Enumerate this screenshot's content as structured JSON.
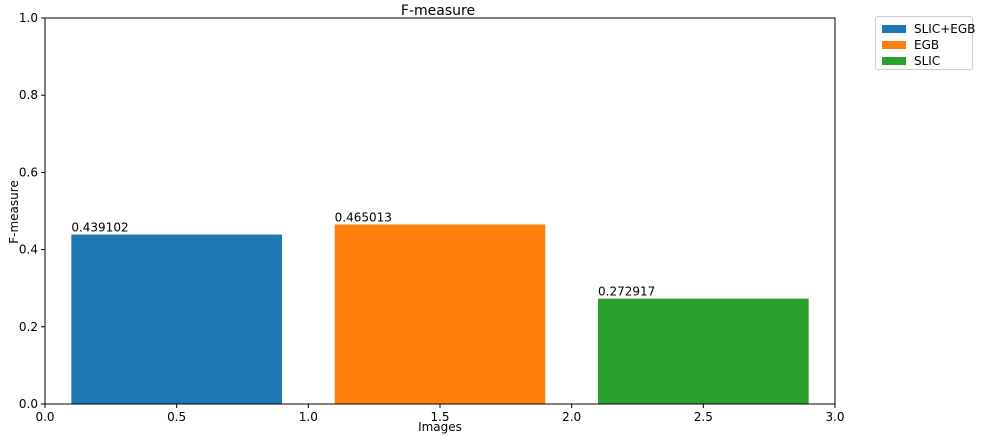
{
  "chart_data": {
    "type": "bar",
    "title": "F-measure",
    "xlabel": "Images",
    "ylabel": "F-measure",
    "xlim": [
      0.0,
      3.0
    ],
    "ylim": [
      0.0,
      1.0
    ],
    "xticks": [
      "0.0",
      "0.5",
      "1.0",
      "1.5",
      "2.0",
      "2.5",
      "3.0"
    ],
    "yticks": [
      "0.0",
      "0.2",
      "0.4",
      "0.6",
      "0.8",
      "1.0"
    ],
    "grid": false,
    "legend_position": "outside-top-right",
    "bar_width": 0.8,
    "series": [
      {
        "name": "SLIC+EGB",
        "x": 0.5,
        "value": 0.439102,
        "label": "0.439102",
        "color": "#1f77b4"
      },
      {
        "name": "EGB",
        "x": 1.5,
        "value": 0.465013,
        "label": "0.465013",
        "color": "#ff7f0e"
      },
      {
        "name": "SLIC",
        "x": 2.5,
        "value": 0.272917,
        "label": "0.272917",
        "color": "#2ca02c"
      }
    ]
  }
}
